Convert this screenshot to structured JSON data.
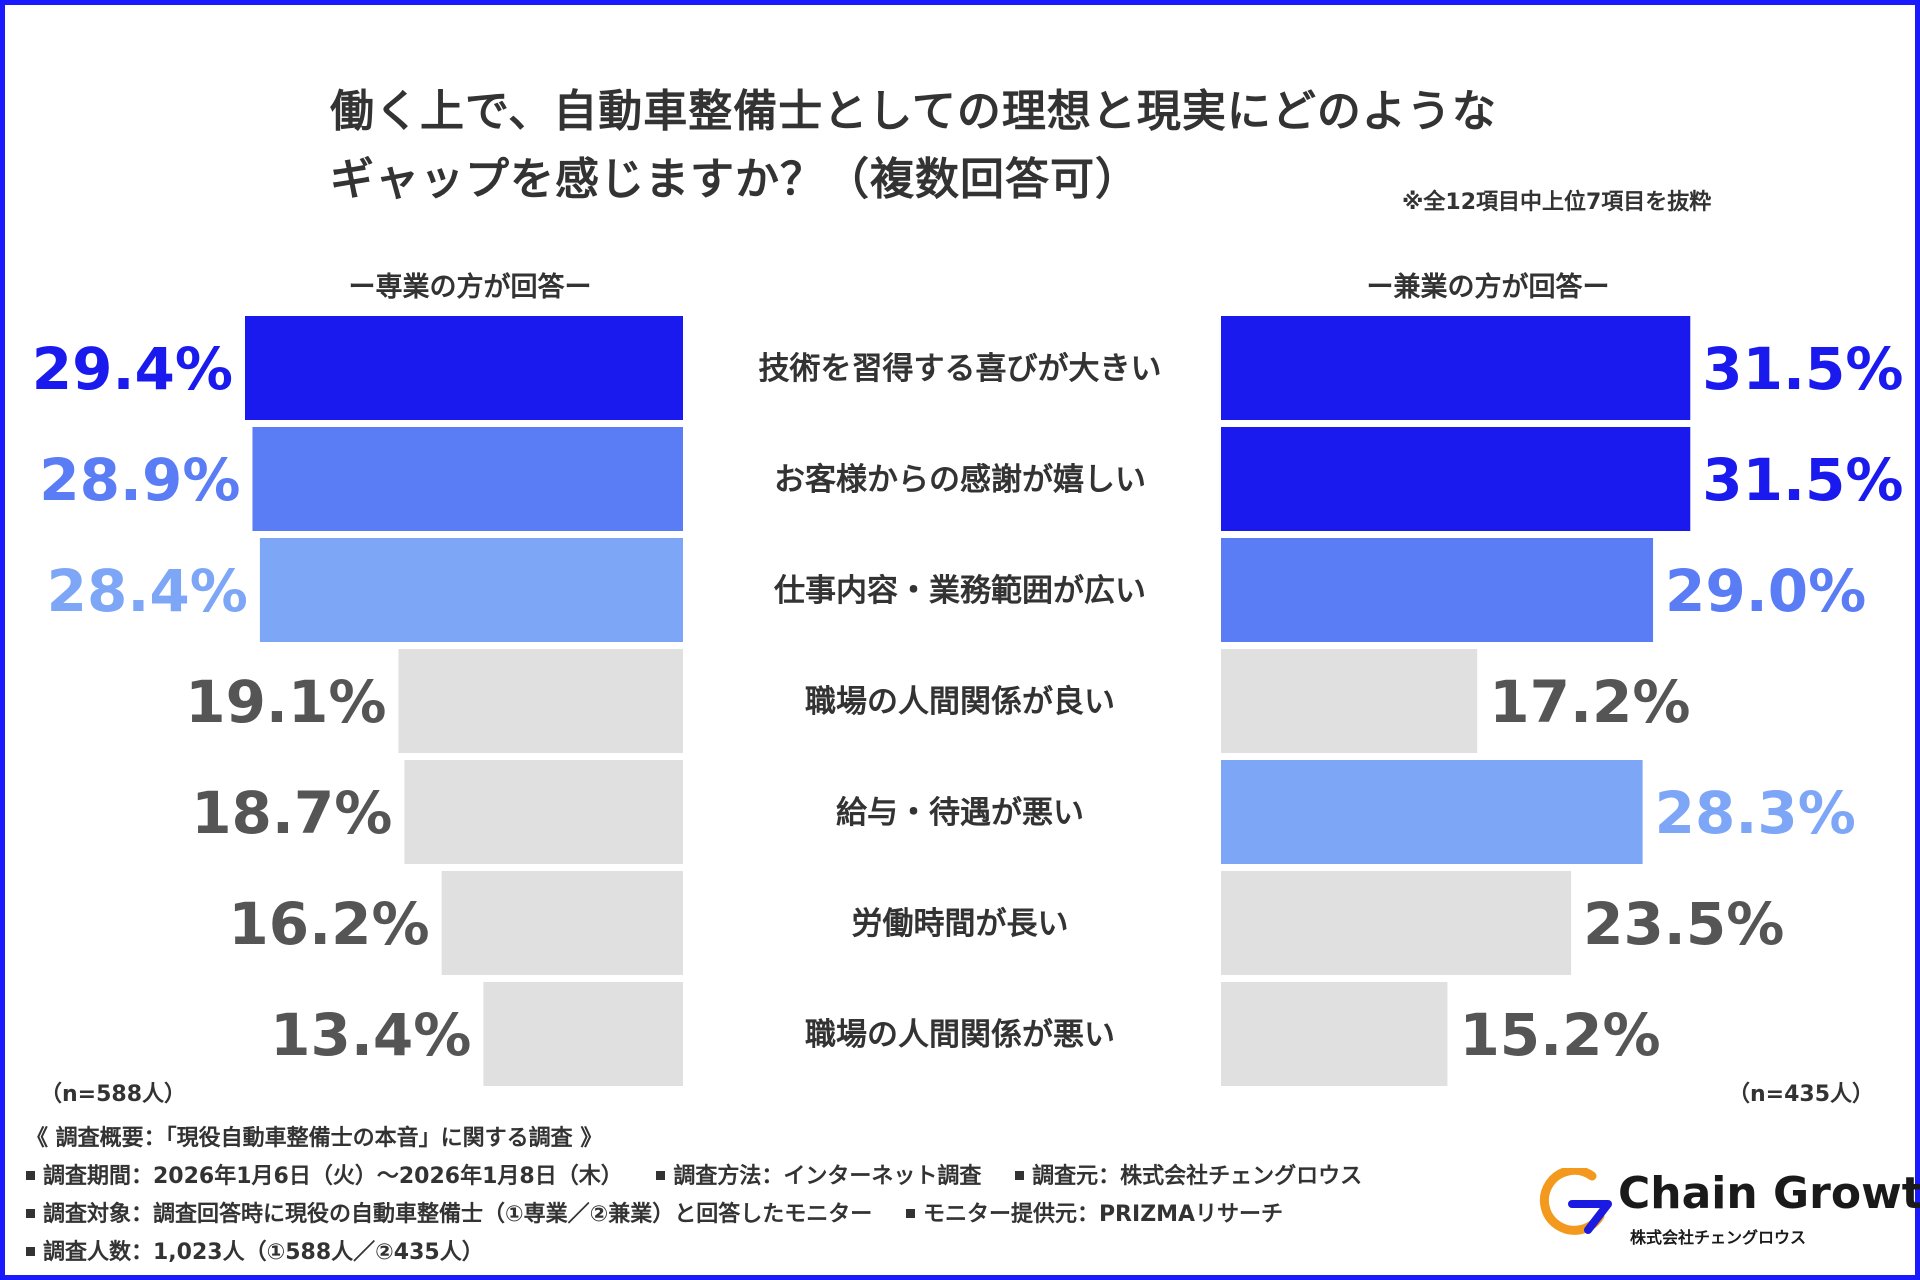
{
  "title": {
    "line1": "働く上で、自動車整備士としての理想と現実にどのような",
    "line2": "ギャップを感じますか？（複数回答可）",
    "note": "※全12項目中上位7項目を抜粋"
  },
  "panels": {
    "left_header": "ー専業の方が回答ー",
    "right_header": "ー兼業の方が回答ー",
    "left_n": "（n=588人）",
    "right_n": "（n=435人）"
  },
  "chart_data": {
    "type": "bar",
    "title": "働く上で、自動車整備士としての理想と現実にどのようなギャップを感じますか？（複数回答可）",
    "categories": [
      "技術を習得する喜びが大きい",
      "お客様からの感謝が嬉しい",
      "仕事内容・業務範囲が広い",
      "職場の人間関係が良い",
      "給与・待遇が悪い",
      "労働時間が長い",
      "職場の人間関係が悪い"
    ],
    "series": [
      {
        "name": "ー専業の方が回答ー",
        "values": [
          29.4,
          28.9,
          28.4,
          19.1,
          18.7,
          16.2,
          13.4
        ],
        "labels": [
          "29.4%",
          "28.9%",
          "28.4%",
          "19.1%",
          "18.7%",
          "16.2%",
          "13.4%"
        ],
        "colors": [
          "#1a1aef",
          "#5a7cf5",
          "#7ea6f7",
          "#e0e0e0",
          "#e0e0e0",
          "#e0e0e0",
          "#e0e0e0"
        ],
        "label_colors": [
          "#1a1aef",
          "#5a7cf5",
          "#7ea6f7",
          "#555555",
          "#555555",
          "#555555",
          "#555555"
        ]
      },
      {
        "name": "ー兼業の方が回答ー",
        "values": [
          31.5,
          31.5,
          29.0,
          17.2,
          28.3,
          23.5,
          15.2
        ],
        "labels": [
          "31.5%",
          "31.5%",
          "29.0%",
          "17.2%",
          "28.3%",
          "23.5%",
          "15.2%"
        ],
        "colors": [
          "#1a1aef",
          "#1a1aef",
          "#5a7cf5",
          "#e0e0e0",
          "#7ea6f7",
          "#e0e0e0",
          "#e0e0e0"
        ],
        "label_colors": [
          "#1a1aef",
          "#1a1aef",
          "#5a7cf5",
          "#555555",
          "#7ea6f7",
          "#555555",
          "#555555"
        ]
      }
    ],
    "xlim": [
      0,
      36
    ]
  },
  "footer": {
    "overview": "《 調査概要：「現役自動車整備士の本音」に関する調査 》",
    "period": "調査期間：2026年1月6日（火）～2026年1月8日（木）",
    "method": "調査方法：インターネット調査",
    "source": "調査元：株式会社チェングロウス",
    "target": "調査対象：調査回答時に現役の自動車整備士（①専業／②兼業）と回答したモニター",
    "provider": "モニター提供元：PRIZMAリサーチ",
    "count": "調査人数：1,023人（①588人／②435人）"
  },
  "logo": {
    "name": "Chain Growth",
    "sub": "株式会社チェングロウス",
    "colors": {
      "orange": "#f39a1e",
      "blue": "#1a1ae0"
    }
  }
}
